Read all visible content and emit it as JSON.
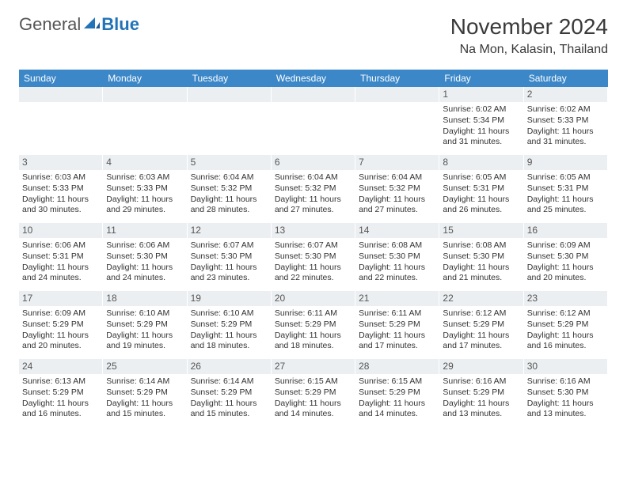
{
  "brand": {
    "part1": "General",
    "part2": "Blue"
  },
  "title": "November 2024",
  "location": "Na Mon, Kalasin, Thailand",
  "weekday_header_bg": "#3b87c8",
  "weekday_header_fg": "#ffffff",
  "daynum_bg": "#eceff1",
  "weekdays": [
    "Sunday",
    "Monday",
    "Tuesday",
    "Wednesday",
    "Thursday",
    "Friday",
    "Saturday"
  ],
  "weeks": [
    [
      {
        "day": "",
        "sunrise": "",
        "sunset": "",
        "daylight": ""
      },
      {
        "day": "",
        "sunrise": "",
        "sunset": "",
        "daylight": ""
      },
      {
        "day": "",
        "sunrise": "",
        "sunset": "",
        "daylight": ""
      },
      {
        "day": "",
        "sunrise": "",
        "sunset": "",
        "daylight": ""
      },
      {
        "day": "",
        "sunrise": "",
        "sunset": "",
        "daylight": ""
      },
      {
        "day": "1",
        "sunrise": "Sunrise: 6:02 AM",
        "sunset": "Sunset: 5:34 PM",
        "daylight": "Daylight: 11 hours and 31 minutes."
      },
      {
        "day": "2",
        "sunrise": "Sunrise: 6:02 AM",
        "sunset": "Sunset: 5:33 PM",
        "daylight": "Daylight: 11 hours and 31 minutes."
      }
    ],
    [
      {
        "day": "3",
        "sunrise": "Sunrise: 6:03 AM",
        "sunset": "Sunset: 5:33 PM",
        "daylight": "Daylight: 11 hours and 30 minutes."
      },
      {
        "day": "4",
        "sunrise": "Sunrise: 6:03 AM",
        "sunset": "Sunset: 5:33 PM",
        "daylight": "Daylight: 11 hours and 29 minutes."
      },
      {
        "day": "5",
        "sunrise": "Sunrise: 6:04 AM",
        "sunset": "Sunset: 5:32 PM",
        "daylight": "Daylight: 11 hours and 28 minutes."
      },
      {
        "day": "6",
        "sunrise": "Sunrise: 6:04 AM",
        "sunset": "Sunset: 5:32 PM",
        "daylight": "Daylight: 11 hours and 27 minutes."
      },
      {
        "day": "7",
        "sunrise": "Sunrise: 6:04 AM",
        "sunset": "Sunset: 5:32 PM",
        "daylight": "Daylight: 11 hours and 27 minutes."
      },
      {
        "day": "8",
        "sunrise": "Sunrise: 6:05 AM",
        "sunset": "Sunset: 5:31 PM",
        "daylight": "Daylight: 11 hours and 26 minutes."
      },
      {
        "day": "9",
        "sunrise": "Sunrise: 6:05 AM",
        "sunset": "Sunset: 5:31 PM",
        "daylight": "Daylight: 11 hours and 25 minutes."
      }
    ],
    [
      {
        "day": "10",
        "sunrise": "Sunrise: 6:06 AM",
        "sunset": "Sunset: 5:31 PM",
        "daylight": "Daylight: 11 hours and 24 minutes."
      },
      {
        "day": "11",
        "sunrise": "Sunrise: 6:06 AM",
        "sunset": "Sunset: 5:30 PM",
        "daylight": "Daylight: 11 hours and 24 minutes."
      },
      {
        "day": "12",
        "sunrise": "Sunrise: 6:07 AM",
        "sunset": "Sunset: 5:30 PM",
        "daylight": "Daylight: 11 hours and 23 minutes."
      },
      {
        "day": "13",
        "sunrise": "Sunrise: 6:07 AM",
        "sunset": "Sunset: 5:30 PM",
        "daylight": "Daylight: 11 hours and 22 minutes."
      },
      {
        "day": "14",
        "sunrise": "Sunrise: 6:08 AM",
        "sunset": "Sunset: 5:30 PM",
        "daylight": "Daylight: 11 hours and 22 minutes."
      },
      {
        "day": "15",
        "sunrise": "Sunrise: 6:08 AM",
        "sunset": "Sunset: 5:30 PM",
        "daylight": "Daylight: 11 hours and 21 minutes."
      },
      {
        "day": "16",
        "sunrise": "Sunrise: 6:09 AM",
        "sunset": "Sunset: 5:30 PM",
        "daylight": "Daylight: 11 hours and 20 minutes."
      }
    ],
    [
      {
        "day": "17",
        "sunrise": "Sunrise: 6:09 AM",
        "sunset": "Sunset: 5:29 PM",
        "daylight": "Daylight: 11 hours and 20 minutes."
      },
      {
        "day": "18",
        "sunrise": "Sunrise: 6:10 AM",
        "sunset": "Sunset: 5:29 PM",
        "daylight": "Daylight: 11 hours and 19 minutes."
      },
      {
        "day": "19",
        "sunrise": "Sunrise: 6:10 AM",
        "sunset": "Sunset: 5:29 PM",
        "daylight": "Daylight: 11 hours and 18 minutes."
      },
      {
        "day": "20",
        "sunrise": "Sunrise: 6:11 AM",
        "sunset": "Sunset: 5:29 PM",
        "daylight": "Daylight: 11 hours and 18 minutes."
      },
      {
        "day": "21",
        "sunrise": "Sunrise: 6:11 AM",
        "sunset": "Sunset: 5:29 PM",
        "daylight": "Daylight: 11 hours and 17 minutes."
      },
      {
        "day": "22",
        "sunrise": "Sunrise: 6:12 AM",
        "sunset": "Sunset: 5:29 PM",
        "daylight": "Daylight: 11 hours and 17 minutes."
      },
      {
        "day": "23",
        "sunrise": "Sunrise: 6:12 AM",
        "sunset": "Sunset: 5:29 PM",
        "daylight": "Daylight: 11 hours and 16 minutes."
      }
    ],
    [
      {
        "day": "24",
        "sunrise": "Sunrise: 6:13 AM",
        "sunset": "Sunset: 5:29 PM",
        "daylight": "Daylight: 11 hours and 16 minutes."
      },
      {
        "day": "25",
        "sunrise": "Sunrise: 6:14 AM",
        "sunset": "Sunset: 5:29 PM",
        "daylight": "Daylight: 11 hours and 15 minutes."
      },
      {
        "day": "26",
        "sunrise": "Sunrise: 6:14 AM",
        "sunset": "Sunset: 5:29 PM",
        "daylight": "Daylight: 11 hours and 15 minutes."
      },
      {
        "day": "27",
        "sunrise": "Sunrise: 6:15 AM",
        "sunset": "Sunset: 5:29 PM",
        "daylight": "Daylight: 11 hours and 14 minutes."
      },
      {
        "day": "28",
        "sunrise": "Sunrise: 6:15 AM",
        "sunset": "Sunset: 5:29 PM",
        "daylight": "Daylight: 11 hours and 14 minutes."
      },
      {
        "day": "29",
        "sunrise": "Sunrise: 6:16 AM",
        "sunset": "Sunset: 5:29 PM",
        "daylight": "Daylight: 11 hours and 13 minutes."
      },
      {
        "day": "30",
        "sunrise": "Sunrise: 6:16 AM",
        "sunset": "Sunset: 5:30 PM",
        "daylight": "Daylight: 11 hours and 13 minutes."
      }
    ]
  ]
}
